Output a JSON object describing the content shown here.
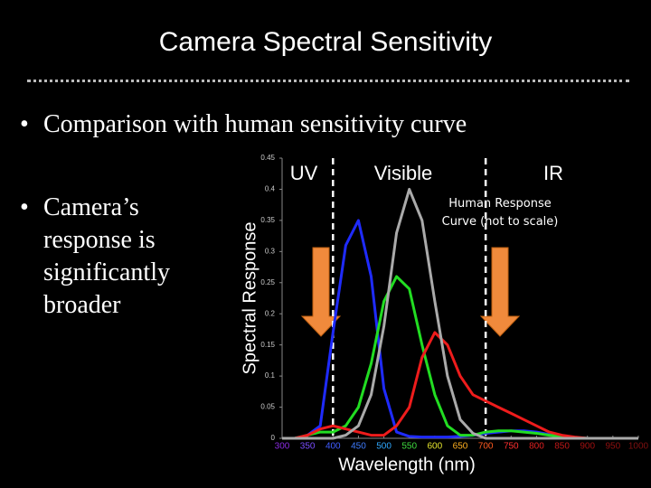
{
  "slide": {
    "title": "Camera Spectral Sensitivity",
    "bullets": [
      "Comparison with human sensitivity curve",
      "Camera’s response is significantly broader"
    ]
  },
  "chart_data": {
    "type": "line",
    "x_label": "Wavelength (nm)",
    "y_label": "Spectral Response",
    "annotations": [
      "UV",
      "Visible",
      "IR",
      "Human Response Curve (not to scale)"
    ],
    "vlines": [
      400,
      700
    ],
    "xlim": [
      300,
      1000
    ],
    "ylim": [
      0,
      0.45
    ],
    "xticks": [
      300,
      350,
      400,
      450,
      500,
      550,
      600,
      650,
      700,
      750,
      800,
      850,
      900,
      950,
      1000
    ],
    "yticks": [
      0,
      0.05,
      0.1,
      0.15,
      0.2,
      0.25,
      0.3,
      0.35,
      0.4,
      0.45
    ],
    "x": [
      300,
      325,
      350,
      375,
      400,
      425,
      450,
      475,
      500,
      525,
      550,
      575,
      600,
      625,
      650,
      675,
      700,
      725,
      750,
      775,
      800,
      825,
      850,
      875,
      900,
      925,
      950,
      975,
      1000
    ],
    "series": [
      {
        "color": "#1f2bff",
        "values": [
          0,
          0,
          0.005,
          0.02,
          0.17,
          0.31,
          0.35,
          0.26,
          0.08,
          0.01,
          0.003,
          0.002,
          0.002,
          0.002,
          0.003,
          0.005,
          0.008,
          0.01,
          0.012,
          0.012,
          0.01,
          0.006,
          0.003,
          0.001,
          0,
          0,
          0,
          0,
          0
        ]
      },
      {
        "color": "#22dd22",
        "values": [
          0,
          0,
          0.005,
          0.01,
          0.01,
          0.02,
          0.05,
          0.12,
          0.22,
          0.26,
          0.24,
          0.15,
          0.07,
          0.02,
          0.005,
          0.005,
          0.01,
          0.012,
          0.012,
          0.01,
          0.008,
          0.005,
          0.003,
          0.001,
          0,
          0,
          0,
          0,
          0
        ]
      },
      {
        "color": "#ee1c1c",
        "values": [
          0,
          0,
          0.005,
          0.015,
          0.02,
          0.015,
          0.01,
          0.005,
          0.005,
          0.02,
          0.05,
          0.13,
          0.17,
          0.15,
          0.1,
          0.07,
          0.06,
          0.05,
          0.04,
          0.03,
          0.02,
          0.01,
          0.005,
          0.002,
          0,
          0,
          0,
          0,
          0
        ]
      },
      {
        "color": "#aaaaaa",
        "values": [
          0,
          0,
          0,
          0,
          0,
          0.005,
          0.02,
          0.07,
          0.18,
          0.33,
          0.4,
          0.35,
          0.22,
          0.1,
          0.03,
          0.008,
          0,
          0,
          0,
          0,
          0,
          0,
          0,
          0,
          0,
          0,
          0,
          0,
          0
        ]
      }
    ]
  }
}
